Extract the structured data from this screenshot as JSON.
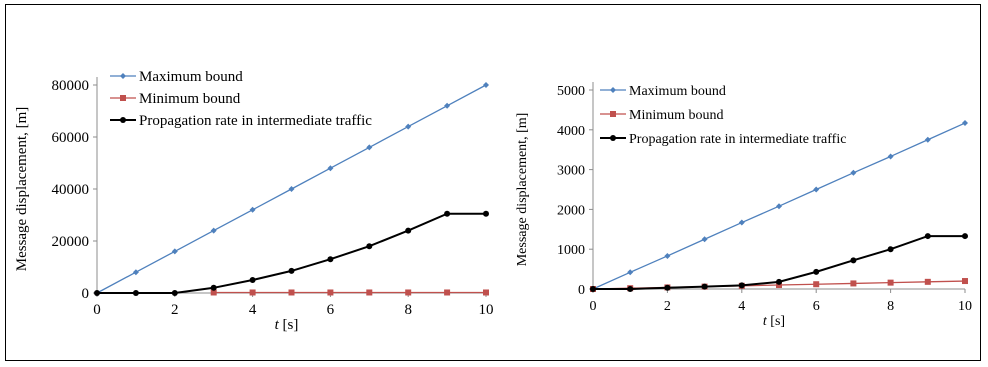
{
  "chart_data": [
    {
      "type": "line",
      "title": "",
      "xlabel": "t [s]",
      "ylabel": "Message displacement, [m]",
      "xlim": [
        0,
        10
      ],
      "ylim": [
        0,
        80000
      ],
      "x_ticks": [
        0,
        2,
        4,
        6,
        8,
        10
      ],
      "y_ticks": [
        0,
        20000,
        40000,
        60000,
        80000
      ],
      "grid": false,
      "legend": "top-left",
      "series": [
        {
          "name": "Maximum bound",
          "color": "#4f81bd",
          "marker": "diamond",
          "x": [
            0,
            1,
            2,
            3,
            4,
            5,
            6,
            7,
            8,
            9,
            10
          ],
          "y": [
            0,
            8000,
            16000,
            24000,
            32000,
            40000,
            48000,
            56000,
            64000,
            72000,
            80000
          ]
        },
        {
          "name": "Minimum bound",
          "color": "#c0504d",
          "marker": "square",
          "x": [
            3,
            4,
            5,
            6,
            7,
            8,
            9,
            10
          ],
          "y": [
            200,
            200,
            200,
            200,
            200,
            200,
            200,
            200
          ]
        },
        {
          "name": "Propagation rate in intermediate traffic",
          "color": "#000000",
          "marker": "circle",
          "x": [
            0,
            1,
            2,
            3,
            4,
            5,
            6,
            7,
            8,
            9,
            10
          ],
          "y": [
            0,
            0,
            0,
            2000,
            5000,
            8500,
            13000,
            18000,
            24000,
            30500,
            30500
          ]
        }
      ]
    },
    {
      "type": "line",
      "title": "",
      "xlabel": "t [s]",
      "ylabel": "Message displacement, [m]",
      "xlim": [
        0,
        10
      ],
      "ylim": [
        0,
        5000
      ],
      "x_ticks": [
        0,
        2,
        4,
        6,
        8,
        10
      ],
      "y_ticks": [
        0,
        1000,
        2000,
        3000,
        4000,
        5000
      ],
      "grid": false,
      "legend": "top-left",
      "series": [
        {
          "name": "Maximum bound",
          "color": "#4f81bd",
          "marker": "diamond",
          "x": [
            0,
            1,
            2,
            3,
            4,
            5,
            6,
            7,
            8,
            9,
            10
          ],
          "y": [
            0,
            420,
            830,
            1250,
            1670,
            2080,
            2500,
            2920,
            3330,
            3750,
            4170
          ]
        },
        {
          "name": "Minimum bound",
          "color": "#c0504d",
          "marker": "square",
          "x": [
            0,
            1,
            2,
            3,
            4,
            5,
            6,
            7,
            8,
            9,
            10
          ],
          "y": [
            0,
            20,
            40,
            60,
            80,
            100,
            120,
            140,
            160,
            180,
            200
          ]
        },
        {
          "name": "Propagation rate in intermediate traffic",
          "color": "#000000",
          "marker": "circle",
          "x": [
            0,
            1,
            2,
            3,
            4,
            5,
            6,
            7,
            8,
            9,
            10
          ],
          "y": [
            0,
            0,
            30,
            60,
            90,
            180,
            430,
            720,
            1000,
            1330,
            1330
          ]
        }
      ]
    }
  ]
}
